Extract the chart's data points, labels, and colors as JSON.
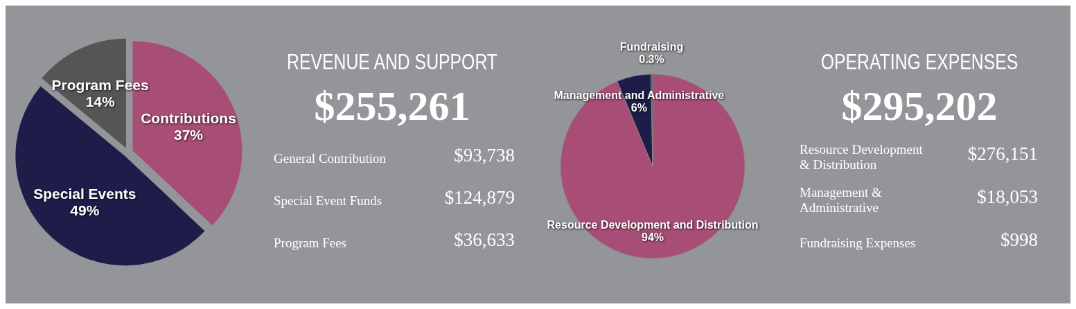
{
  "chart_data": [
    {
      "type": "pie",
      "categories": [
        "Contributions",
        "Special Events",
        "Program Fees"
      ],
      "values": [
        37,
        49,
        14
      ],
      "value_labels": [
        "37%",
        "49%",
        "14%"
      ],
      "colors": [
        "#a84e76",
        "#1e1d4a",
        "#555555"
      ]
    },
    {
      "type": "other",
      "title": "REVENUE AND SUPPORT",
      "subtitle": "$255,261",
      "annotations": [
        "General Contribution",
        "$93,738",
        "Special Event Funds",
        "$124,879",
        "Program Fees",
        "$36,633"
      ]
    },
    {
      "type": "pie",
      "categories": [
        "Resource Development and Distribution",
        "Management and Administrative",
        "Fundraising"
      ],
      "values": [
        94,
        6,
        0.3
      ],
      "value_labels": [
        "94%",
        "6%",
        "0.3%"
      ],
      "colors": [
        "#a84e76",
        "#1e1d4a",
        "#555555"
      ]
    },
    {
      "type": "other",
      "title": "OPERATING EXPENSES",
      "subtitle": "$295,202",
      "annotations": [
        "Resource Development & Distribution",
        "$276,151",
        "Management & Administrative",
        "$18,053",
        "Fundraising Expenses",
        "$998"
      ]
    }
  ]
}
